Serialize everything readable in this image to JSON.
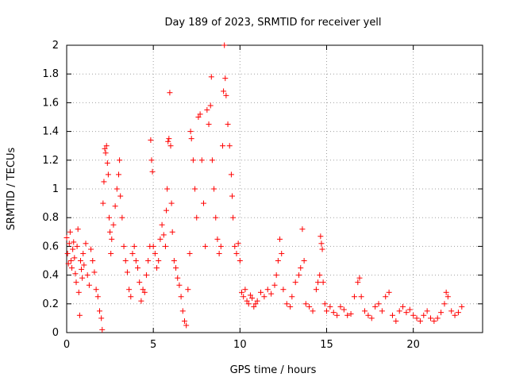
{
  "chart_data": {
    "type": "scatter",
    "title": "Day 189 of 2023, SRMTID for receiver yell",
    "xlabel": "GPS time / hours",
    "ylabel": "SRMTID / TECUs",
    "xlim": [
      0,
      24
    ],
    "ylim": [
      0,
      2
    ],
    "xticks": [
      0,
      5,
      10,
      15,
      20
    ],
    "xtick_labels": [
      "0",
      "5",
      "10",
      "15",
      "20"
    ],
    "yticks": [
      0,
      0.2,
      0.4,
      0.6,
      0.8,
      1,
      1.2,
      1.4,
      1.6,
      1.8,
      2
    ],
    "ytick_labels": [
      "0",
      "0.2",
      "0.4",
      "0.6",
      "0.8",
      "1",
      "1.2",
      "1.4",
      "1.6",
      "1.8",
      "2"
    ],
    "grid": true,
    "marker": "+",
    "marker_color": "#ff0000",
    "series": [
      {
        "name": "SRMTID",
        "points": [
          [
            0.0,
            0.66
          ],
          [
            0.05,
            0.55
          ],
          [
            0.1,
            0.48
          ],
          [
            0.15,
            0.62
          ],
          [
            0.2,
            0.7
          ],
          [
            0.25,
            0.5
          ],
          [
            0.3,
            0.45
          ],
          [
            0.35,
            0.58
          ],
          [
            0.4,
            0.63
          ],
          [
            0.45,
            0.52
          ],
          [
            0.5,
            0.41
          ],
          [
            0.55,
            0.35
          ],
          [
            0.6,
            0.6
          ],
          [
            0.65,
            0.72
          ],
          [
            0.7,
            0.28
          ],
          [
            0.75,
            0.12
          ],
          [
            0.8,
            0.5
          ],
          [
            0.85,
            0.44
          ],
          [
            0.9,
            0.38
          ],
          [
            0.95,
            0.55
          ],
          [
            1.0,
            0.47
          ],
          [
            1.1,
            0.62
          ],
          [
            1.2,
            0.4
          ],
          [
            1.3,
            0.33
          ],
          [
            1.4,
            0.58
          ],
          [
            1.5,
            0.5
          ],
          [
            1.6,
            0.42
          ],
          [
            1.7,
            0.3
          ],
          [
            1.8,
            0.25
          ],
          [
            1.9,
            0.15
          ],
          [
            2.0,
            0.1
          ],
          [
            2.05,
            0.02
          ],
          [
            2.1,
            0.9
          ],
          [
            2.15,
            1.05
          ],
          [
            2.2,
            1.28
          ],
          [
            2.25,
            1.25
          ],
          [
            2.3,
            1.3
          ],
          [
            2.35,
            1.18
          ],
          [
            2.4,
            1.1
          ],
          [
            2.45,
            0.8
          ],
          [
            2.5,
            0.7
          ],
          [
            2.55,
            0.55
          ],
          [
            2.6,
            0.65
          ],
          [
            2.7,
            0.75
          ],
          [
            2.8,
            0.88
          ],
          [
            2.9,
            1.0
          ],
          [
            3.0,
            1.1
          ],
          [
            3.05,
            1.2
          ],
          [
            3.1,
            0.95
          ],
          [
            3.2,
            0.8
          ],
          [
            3.3,
            0.6
          ],
          [
            3.4,
            0.5
          ],
          [
            3.5,
            0.42
          ],
          [
            3.6,
            0.3
          ],
          [
            3.7,
            0.25
          ],
          [
            3.8,
            0.55
          ],
          [
            3.9,
            0.6
          ],
          [
            4.0,
            0.5
          ],
          [
            4.1,
            0.45
          ],
          [
            4.2,
            0.35
          ],
          [
            4.3,
            0.22
          ],
          [
            4.4,
            0.3
          ],
          [
            4.5,
            0.28
          ],
          [
            4.6,
            0.4
          ],
          [
            4.7,
            0.5
          ],
          [
            4.8,
            0.6
          ],
          [
            4.85,
            1.34
          ],
          [
            4.9,
            1.2
          ],
          [
            4.95,
            1.12
          ],
          [
            5.0,
            0.6
          ],
          [
            5.1,
            0.55
          ],
          [
            5.2,
            0.45
          ],
          [
            5.3,
            0.5
          ],
          [
            5.4,
            0.65
          ],
          [
            5.5,
            0.75
          ],
          [
            5.6,
            0.68
          ],
          [
            5.7,
            0.6
          ],
          [
            5.75,
            0.85
          ],
          [
            5.8,
            1.0
          ],
          [
            5.85,
            1.33
          ],
          [
            5.9,
            1.35
          ],
          [
            5.95,
            1.67
          ],
          [
            6.0,
            1.3
          ],
          [
            6.05,
            0.9
          ],
          [
            6.1,
            0.7
          ],
          [
            6.2,
            0.5
          ],
          [
            6.3,
            0.45
          ],
          [
            6.4,
            0.38
          ],
          [
            6.5,
            0.33
          ],
          [
            6.6,
            0.25
          ],
          [
            6.7,
            0.15
          ],
          [
            6.8,
            0.08
          ],
          [
            6.9,
            0.05
          ],
          [
            7.0,
            0.3
          ],
          [
            7.1,
            0.55
          ],
          [
            7.15,
            1.4
          ],
          [
            7.2,
            1.35
          ],
          [
            7.3,
            1.2
          ],
          [
            7.4,
            1.0
          ],
          [
            7.5,
            0.8
          ],
          [
            7.6,
            1.5
          ],
          [
            7.7,
            1.52
          ],
          [
            7.8,
            1.2
          ],
          [
            7.9,
            0.9
          ],
          [
            8.0,
            0.6
          ],
          [
            8.1,
            1.55
          ],
          [
            8.2,
            1.45
          ],
          [
            8.3,
            1.58
          ],
          [
            8.35,
            1.78
          ],
          [
            8.4,
            1.2
          ],
          [
            8.5,
            1.0
          ],
          [
            8.6,
            0.8
          ],
          [
            8.7,
            0.65
          ],
          [
            8.8,
            0.55
          ],
          [
            8.9,
            0.6
          ],
          [
            9.0,
            1.3
          ],
          [
            9.05,
            1.68
          ],
          [
            9.1,
            2.0
          ],
          [
            9.15,
            1.77
          ],
          [
            9.2,
            1.65
          ],
          [
            9.3,
            1.45
          ],
          [
            9.4,
            1.3
          ],
          [
            9.5,
            1.1
          ],
          [
            9.55,
            0.95
          ],
          [
            9.6,
            0.8
          ],
          [
            9.7,
            0.6
          ],
          [
            9.8,
            0.55
          ],
          [
            9.9,
            0.62
          ],
          [
            10.0,
            0.5
          ],
          [
            10.1,
            0.28
          ],
          [
            10.2,
            0.25
          ],
          [
            10.3,
            0.3
          ],
          [
            10.4,
            0.22
          ],
          [
            10.5,
            0.2
          ],
          [
            10.6,
            0.26
          ],
          [
            10.7,
            0.24
          ],
          [
            10.8,
            0.18
          ],
          [
            10.9,
            0.2
          ],
          [
            11.0,
            0.22
          ],
          [
            11.2,
            0.28
          ],
          [
            11.4,
            0.25
          ],
          [
            11.6,
            0.3
          ],
          [
            11.8,
            0.27
          ],
          [
            12.0,
            0.33
          ],
          [
            12.1,
            0.4
          ],
          [
            12.2,
            0.5
          ],
          [
            12.3,
            0.65
          ],
          [
            12.4,
            0.55
          ],
          [
            12.5,
            0.3
          ],
          [
            12.7,
            0.2
          ],
          [
            12.9,
            0.18
          ],
          [
            13.0,
            0.25
          ],
          [
            13.2,
            0.35
          ],
          [
            13.4,
            0.4
          ],
          [
            13.5,
            0.45
          ],
          [
            13.6,
            0.72
          ],
          [
            13.7,
            0.5
          ],
          [
            13.8,
            0.2
          ],
          [
            14.0,
            0.18
          ],
          [
            14.2,
            0.15
          ],
          [
            14.4,
            0.3
          ],
          [
            14.5,
            0.35
          ],
          [
            14.6,
            0.4
          ],
          [
            14.65,
            0.67
          ],
          [
            14.7,
            0.62
          ],
          [
            14.75,
            0.58
          ],
          [
            14.8,
            0.35
          ],
          [
            14.9,
            0.2
          ],
          [
            15.0,
            0.15
          ],
          [
            15.2,
            0.18
          ],
          [
            15.4,
            0.14
          ],
          [
            15.6,
            0.12
          ],
          [
            15.8,
            0.18
          ],
          [
            16.0,
            0.16
          ],
          [
            16.2,
            0.12
          ],
          [
            16.4,
            0.13
          ],
          [
            16.6,
            0.25
          ],
          [
            16.8,
            0.35
          ],
          [
            16.9,
            0.38
          ],
          [
            17.0,
            0.25
          ],
          [
            17.2,
            0.15
          ],
          [
            17.4,
            0.12
          ],
          [
            17.6,
            0.1
          ],
          [
            17.8,
            0.18
          ],
          [
            18.0,
            0.2
          ],
          [
            18.2,
            0.15
          ],
          [
            18.4,
            0.25
          ],
          [
            18.6,
            0.28
          ],
          [
            18.8,
            0.12
          ],
          [
            19.0,
            0.08
          ],
          [
            19.2,
            0.15
          ],
          [
            19.4,
            0.18
          ],
          [
            19.6,
            0.14
          ],
          [
            19.8,
            0.16
          ],
          [
            20.0,
            0.12
          ],
          [
            20.2,
            0.1
          ],
          [
            20.4,
            0.08
          ],
          [
            20.6,
            0.12
          ],
          [
            20.8,
            0.15
          ],
          [
            21.0,
            0.1
          ],
          [
            21.2,
            0.08
          ],
          [
            21.4,
            0.1
          ],
          [
            21.6,
            0.14
          ],
          [
            21.8,
            0.2
          ],
          [
            21.9,
            0.28
          ],
          [
            22.0,
            0.25
          ],
          [
            22.2,
            0.15
          ],
          [
            22.4,
            0.12
          ],
          [
            22.6,
            0.14
          ],
          [
            22.8,
            0.18
          ]
        ]
      }
    ]
  }
}
